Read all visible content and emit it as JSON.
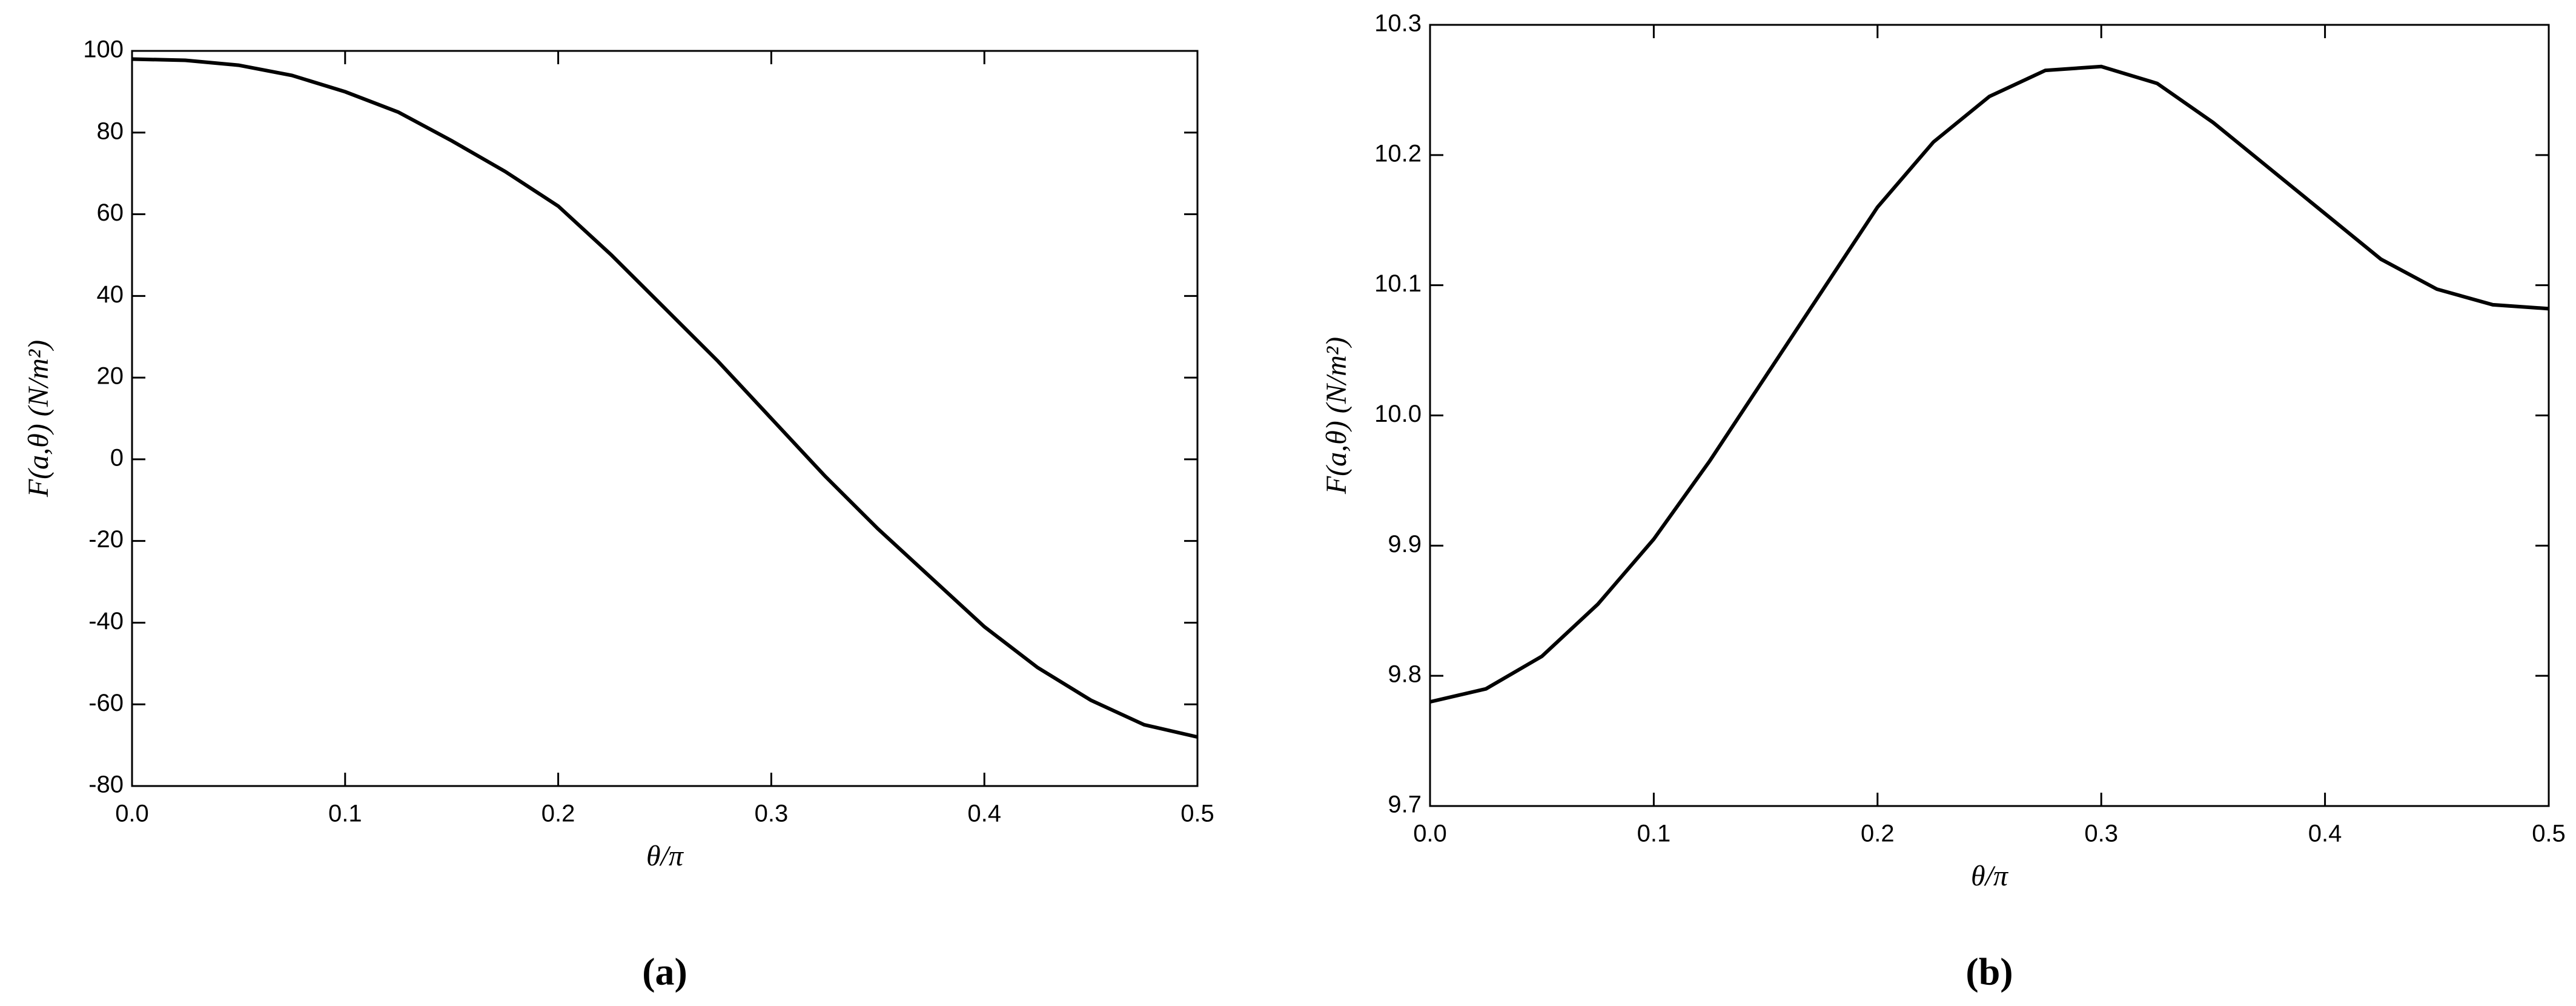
{
  "chart_data": [
    {
      "type": "line",
      "caption": "(a)",
      "x_label": "θ/π",
      "y_label": "F(a,θ)  (N/m²)",
      "x": [
        0,
        0.025,
        0.05,
        0.075,
        0.1,
        0.125,
        0.15,
        0.175,
        0.2,
        0.225,
        0.25,
        0.275,
        0.3,
        0.325,
        0.35,
        0.375,
        0.4,
        0.425,
        0.45,
        0.475,
        0.5
      ],
      "series": [
        {
          "color": "#000000",
          "values": [
            98,
            97.7,
            96.5,
            94,
            90,
            85,
            78,
            70.5,
            62,
            50,
            37,
            24,
            10,
            -4,
            -17,
            -29,
            -41,
            -51,
            -59,
            -65,
            -68
          ]
        }
      ],
      "xlim": [
        0,
        0.5
      ],
      "xticks": [
        {
          "value": 0,
          "label": "0.0"
        },
        0.1,
        0.2,
        0.3,
        0.4,
        0.5
      ],
      "ylim": [
        -80,
        100
      ],
      "yticks": [
        -80,
        -60,
        -40,
        -20,
        0,
        20,
        40,
        60,
        80,
        100
      ]
    },
    {
      "type": "line",
      "caption": "(b)",
      "x_label": "θ/π",
      "y_label": "F(a,θ)  (N/m²)",
      "x": [
        0,
        0.025,
        0.05,
        0.075,
        0.1,
        0.125,
        0.15,
        0.175,
        0.2,
        0.225,
        0.25,
        0.275,
        0.3,
        0.325,
        0.35,
        0.375,
        0.4,
        0.425,
        0.45,
        0.475,
        0.5
      ],
      "series": [
        {
          "color": "#000000",
          "values": [
            9.78,
            9.79,
            9.815,
            9.855,
            9.905,
            9.965,
            10.03,
            10.095,
            10.16,
            10.21,
            10.245,
            10.265,
            10.268,
            10.255,
            10.225,
            10.19,
            10.155,
            10.12,
            10.097,
            10.085,
            10.082
          ]
        }
      ],
      "xlim": [
        0,
        0.5
      ],
      "xticks": [
        {
          "value": 0,
          "label": "0.0"
        },
        0.1,
        0.2,
        0.3,
        0.4,
        0.5
      ],
      "ylim": [
        9.7,
        10.3
      ],
      "yticks": [
        9.7,
        9.8,
        9.9,
        {
          "value": 10,
          "label": "10.0"
        },
        10.1,
        10.2,
        10.3
      ]
    }
  ]
}
